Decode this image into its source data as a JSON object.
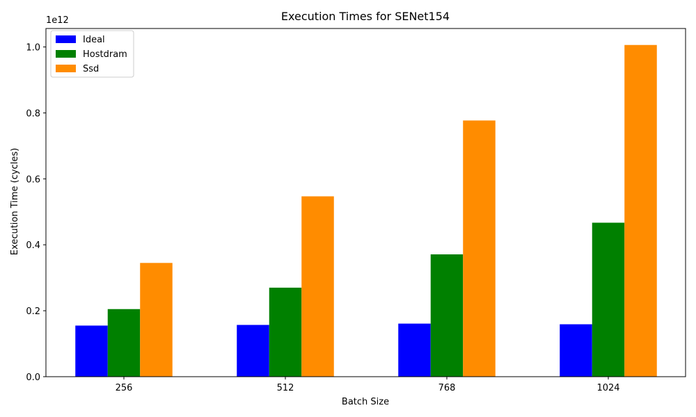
{
  "chart_data": {
    "type": "bar",
    "title": "Execution Times for SENet154",
    "xlabel": "Batch Size",
    "ylabel": "Execution Time (cycles)",
    "y_offset_label": "1e12",
    "y_scale": 1000000000000.0,
    "categories": [
      "256",
      "512",
      "768",
      "1024"
    ],
    "series": [
      {
        "name": "Ideal",
        "color": "#0000ff",
        "values": [
          0.155,
          0.157,
          0.161,
          0.159
        ]
      },
      {
        "name": "Hostdram",
        "color": "#008000",
        "values": [
          0.205,
          0.27,
          0.371,
          0.467
        ]
      },
      {
        "name": "Ssd",
        "color": "#ff8c00",
        "values": [
          0.345,
          0.547,
          0.777,
          1.006
        ]
      }
    ],
    "ylim": [
      0,
      1.056
    ],
    "yticks": [
      0.0,
      0.2,
      0.4,
      0.6,
      0.8,
      1.0
    ],
    "ytick_labels": [
      "0.0",
      "0.2",
      "0.4",
      "0.6",
      "0.8",
      "1.0"
    ],
    "legend_position": "top-left",
    "grid": false
  }
}
